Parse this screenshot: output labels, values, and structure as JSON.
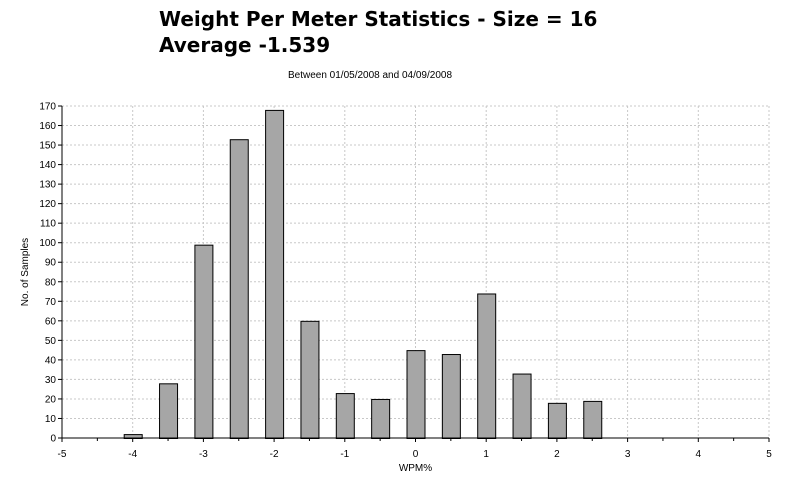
{
  "chart_data": {
    "type": "bar",
    "title_lines": [
      "Weight Per Meter Statistics - Size = 16",
      "Average -1.539"
    ],
    "subtitle": "Between 01/05/2008 and 04/09/2008",
    "xlabel": "WPM%",
    "ylabel": "No. of Samples",
    "xlim": [
      -5,
      5
    ],
    "ylim": [
      0,
      170
    ],
    "x_ticks": [
      "-5",
      "-4",
      "-3",
      "-2",
      "-1",
      "0",
      "1",
      "2",
      "3",
      "4",
      "5"
    ],
    "y_ticks": [
      "0",
      "10",
      "20",
      "30",
      "40",
      "50",
      "60",
      "70",
      "80",
      "90",
      "100",
      "110",
      "120",
      "130",
      "140",
      "150",
      "160",
      "170"
    ],
    "x": [
      -4,
      -3.5,
      -3,
      -2.5,
      -2,
      -1.5,
      -1,
      -0.5,
      0,
      0.5,
      1,
      1.5,
      2,
      2.5
    ],
    "values": [
      2,
      28,
      99,
      153,
      168,
      60,
      23,
      20,
      45,
      43,
      74,
      33,
      18,
      19
    ],
    "grid": true,
    "bar_color": "#a6a6a6",
    "bar_edge_color": "#000000",
    "grid_color": "#c8c8c8"
  }
}
